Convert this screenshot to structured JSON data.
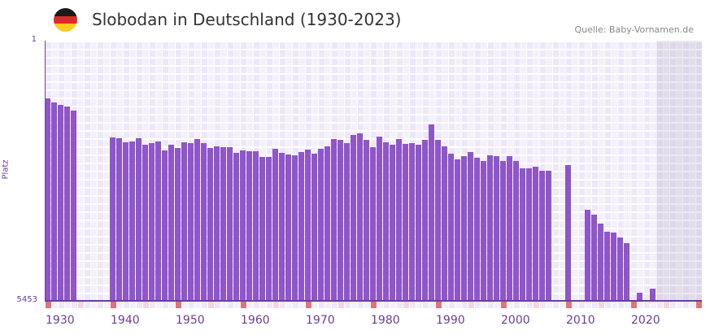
{
  "header": {
    "title": "Slobodan in Deutschland (1930-2023)",
    "source": "Quelle: Baby-Vornamen.de",
    "flag_colors": [
      "#1a1a1a",
      "#dd2a2a",
      "#ffcc22"
    ]
  },
  "chart_data": {
    "type": "bar",
    "title": "Slobodan in Deutschland (1930-2023)",
    "ylabel": "Platz",
    "ylim": [
      5453,
      1
    ],
    "y_tick_labels": [
      "1",
      "5453"
    ],
    "x_tick_labels": [
      "1930",
      "1940",
      "1950",
      "1960",
      "1970",
      "1980",
      "1990",
      "2000",
      "2010",
      "2020"
    ],
    "xlim": [
      1930,
      2030
    ],
    "future_from": 2024,
    "grid": true,
    "colors": {
      "bar": "#8e56c8",
      "axis": "#6b3fa0",
      "decade_marker": "#e5707a",
      "half_marker": "#f3d4df"
    },
    "data": [
      [
        1930,
        1211
      ],
      [
        1931,
        1296
      ],
      [
        1932,
        1347
      ],
      [
        1933,
        1381
      ],
      [
        1934,
        1466
      ],
      [
        1940,
        2029
      ],
      [
        1941,
        2046
      ],
      [
        1942,
        2131
      ],
      [
        1943,
        2114
      ],
      [
        1944,
        2046
      ],
      [
        1945,
        2182
      ],
      [
        1946,
        2148
      ],
      [
        1947,
        2114
      ],
      [
        1948,
        2301
      ],
      [
        1949,
        2182
      ],
      [
        1950,
        2250
      ],
      [
        1951,
        2131
      ],
      [
        1952,
        2148
      ],
      [
        1953,
        2063
      ],
      [
        1954,
        2148
      ],
      [
        1955,
        2250
      ],
      [
        1956,
        2216
      ],
      [
        1957,
        2233
      ],
      [
        1958,
        2233
      ],
      [
        1959,
        2352
      ],
      [
        1960,
        2301
      ],
      [
        1961,
        2318
      ],
      [
        1962,
        2318
      ],
      [
        1963,
        2438
      ],
      [
        1964,
        2438
      ],
      [
        1965,
        2267
      ],
      [
        1966,
        2352
      ],
      [
        1967,
        2386
      ],
      [
        1968,
        2403
      ],
      [
        1969,
        2335
      ],
      [
        1970,
        2284
      ],
      [
        1971,
        2370
      ],
      [
        1972,
        2267
      ],
      [
        1973,
        2216
      ],
      [
        1974,
        2063
      ],
      [
        1975,
        2080
      ],
      [
        1976,
        2148
      ],
      [
        1977,
        1978
      ],
      [
        1978,
        1944
      ],
      [
        1979,
        2080
      ],
      [
        1980,
        2233
      ],
      [
        1981,
        2012
      ],
      [
        1982,
        2131
      ],
      [
        1983,
        2182
      ],
      [
        1984,
        2063
      ],
      [
        1985,
        2165
      ],
      [
        1986,
        2148
      ],
      [
        1987,
        2182
      ],
      [
        1988,
        2080
      ],
      [
        1989,
        1756
      ],
      [
        1990,
        2080
      ],
      [
        1991,
        2216
      ],
      [
        1992,
        2370
      ],
      [
        1993,
        2489
      ],
      [
        1994,
        2421
      ],
      [
        1995,
        2335
      ],
      [
        1996,
        2455
      ],
      [
        1997,
        2523
      ],
      [
        1998,
        2403
      ],
      [
        1999,
        2421
      ],
      [
        2000,
        2523
      ],
      [
        2001,
        2421
      ],
      [
        2002,
        2523
      ],
      [
        2003,
        2676
      ],
      [
        2004,
        2676
      ],
      [
        2005,
        2642
      ],
      [
        2006,
        2727
      ],
      [
        2007,
        2727
      ],
      [
        2010,
        2608
      ],
      [
        2013,
        3545
      ],
      [
        2014,
        3648
      ],
      [
        2015,
        3835
      ],
      [
        2016,
        4005
      ],
      [
        2017,
        4022
      ],
      [
        2018,
        4125
      ],
      [
        2019,
        4244
      ],
      [
        2021,
        5283
      ],
      [
        2023,
        5198
      ]
    ]
  }
}
